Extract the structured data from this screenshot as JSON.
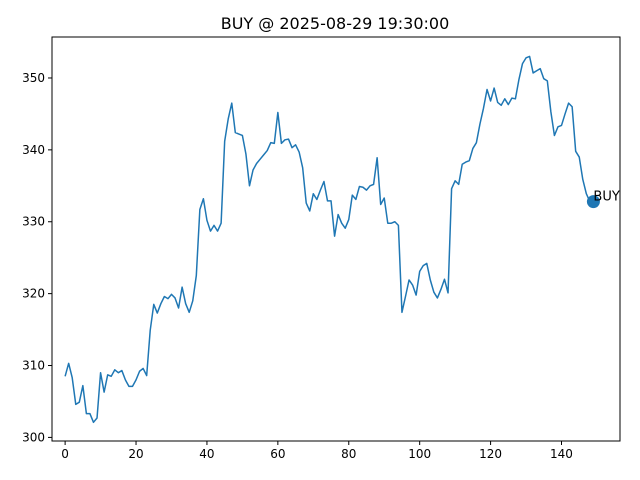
{
  "chart_data": {
    "type": "line",
    "title": "BUY @ 2025-08-29 19:30:00",
    "xlabel": "",
    "ylabel": "",
    "xlim": [
      -3.7,
      156.5
    ],
    "ylim": [
      299.5,
      355.7
    ],
    "xticks": [
      0,
      20,
      40,
      60,
      80,
      100,
      120,
      140
    ],
    "yticks": [
      300,
      310,
      320,
      330,
      340,
      350
    ],
    "xtick_labels": [
      "0",
      "20",
      "40",
      "60",
      "80",
      "100",
      "120",
      "140"
    ],
    "ytick_labels": [
      "300",
      "310",
      "320",
      "330",
      "340",
      "350"
    ],
    "grid": false,
    "line_color": "#1f77b4",
    "series": [
      {
        "x": [
          0,
          1,
          2,
          3,
          4,
          5,
          6,
          7,
          8,
          9,
          10,
          11,
          12,
          13,
          14,
          15,
          16,
          17,
          18,
          19,
          20,
          21,
          22,
          23,
          24,
          25,
          26,
          27,
          28,
          29,
          30,
          31,
          32,
          33,
          34,
          35,
          36,
          37,
          38,
          39,
          40,
          41,
          42,
          43,
          44,
          45,
          46,
          47,
          48,
          49,
          50,
          51,
          52,
          53,
          54,
          55,
          56,
          57,
          58,
          59,
          60,
          61,
          62,
          63,
          64,
          65,
          66,
          67,
          68,
          69,
          70,
          71,
          72,
          73,
          74,
          75,
          76,
          77,
          78,
          79,
          80,
          81,
          82,
          83,
          84,
          85,
          86,
          87,
          88,
          89,
          90,
          91,
          92,
          93,
          94,
          95,
          96,
          97,
          98,
          99,
          100,
          101,
          102,
          103,
          104,
          105,
          106,
          107,
          108,
          109,
          110,
          111,
          112,
          113,
          114,
          115,
          116,
          117,
          118,
          119,
          120,
          121,
          122,
          123,
          124,
          125,
          126,
          127,
          128,
          129,
          130,
          131,
          132,
          133,
          134,
          135,
          136,
          137,
          138,
          139,
          140,
          141,
          142,
          143,
          144,
          145,
          146,
          147,
          148,
          149
        ],
        "values": [
          308.5,
          310.3,
          308.3,
          304.6,
          304.9,
          307.2,
          303.3,
          303.3,
          302.1,
          302.7,
          309.0,
          306.3,
          308.7,
          308.5,
          309.4,
          309.0,
          309.3,
          308.0,
          307.1,
          307.1,
          308.0,
          309.2,
          309.6,
          308.6,
          314.9,
          318.5,
          317.3,
          318.6,
          319.6,
          319.3,
          319.9,
          319.4,
          318.0,
          320.9,
          318.6,
          317.4,
          319.0,
          322.5,
          331.7,
          333.2,
          330.2,
          328.7,
          329.5,
          328.7,
          329.8,
          341.2,
          344.3,
          346.5,
          342.4,
          342.2,
          342.0,
          339.4,
          335.0,
          337.2,
          338.1,
          338.7,
          339.3,
          339.9,
          341.0,
          340.9,
          345.2,
          340.9,
          341.4,
          341.5,
          340.3,
          340.7,
          339.7,
          337.5,
          332.6,
          331.5,
          333.9,
          333.1,
          334.4,
          335.6,
          332.9,
          332.9,
          328.0,
          331.0,
          329.8,
          329.1,
          330.3,
          333.7,
          333.1,
          334.9,
          334.8,
          334.4,
          335.0,
          335.2,
          338.9,
          332.4,
          333.3,
          329.8,
          329.8,
          330.0,
          329.5,
          317.4,
          319.6,
          321.9,
          321.2,
          319.8,
          323.1,
          323.9,
          324.2,
          321.9,
          320.2,
          319.4,
          320.6,
          322.0,
          320.1,
          334.6,
          335.7,
          335.2,
          338.0,
          338.3,
          338.5,
          340.2,
          341.0,
          343.6,
          345.8,
          348.4,
          346.8,
          348.6,
          346.6,
          346.2,
          347.1,
          346.3,
          347.2,
          347.1,
          349.8,
          352.0,
          352.8,
          353.0,
          350.7,
          351.0,
          351.3,
          349.9,
          349.6,
          345.3,
          342.0,
          343.2,
          343.4,
          345.0,
          346.5,
          346.0,
          339.8,
          339.0,
          335.9,
          333.9,
          332.8,
          332.8
        ]
      }
    ],
    "annotations": [
      {
        "label": "BUY",
        "x": 149,
        "y": 332.8,
        "marker_color": "#1f77b4"
      }
    ]
  }
}
